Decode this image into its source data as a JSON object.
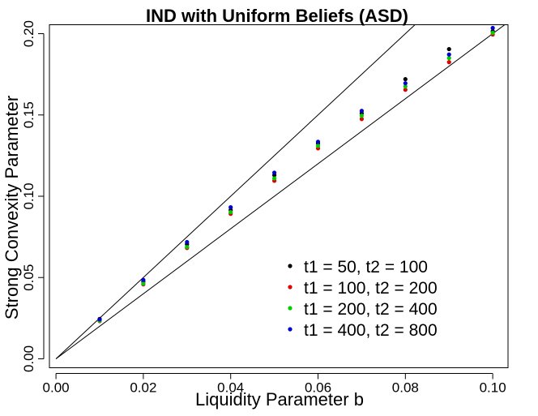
{
  "chart_data": {
    "type": "scatter",
    "title": "IND with  Uniform Beliefs (ASD)",
    "xlabel": "Liquidity Parameter b",
    "ylabel": "Strong Convexity Parameter",
    "xlim": [
      -0.0015,
      0.1035
    ],
    "ylim": [
      -0.0055,
      0.2055
    ],
    "x_ticks": [
      "0.00",
      "0.02",
      "0.04",
      "0.06",
      "0.08",
      "0.10"
    ],
    "y_ticks": [
      "0.00",
      "0.05",
      "0.10",
      "0.15",
      "0.20"
    ],
    "grid": false,
    "legend_position": "bottom-right",
    "reference_lines": [
      {
        "slope": 2.5
      },
      {
        "slope": 2.0
      }
    ],
    "x": [
      0.01,
      0.02,
      0.03,
      0.04,
      0.05,
      0.06,
      0.07,
      0.08,
      0.09,
      0.1
    ],
    "series": [
      {
        "name": "t1 = 50, t2 = 100",
        "color": "#000000",
        "values": [
          0.0245,
          0.0475,
          0.0705,
          0.0915,
          0.113,
          0.1325,
          0.151,
          0.172,
          0.1905,
          0.2015
        ]
      },
      {
        "name": "t1 = 100, t2 = 200",
        "color": "#df0000",
        "values": [
          0.0232,
          0.0458,
          0.0682,
          0.0892,
          0.1095,
          0.1295,
          0.1475,
          0.1655,
          0.1825,
          0.1995
        ]
      },
      {
        "name": "t1 = 200, t2 = 400",
        "color": "#00cd00",
        "values": [
          0.0235,
          0.0463,
          0.0688,
          0.0902,
          0.111,
          0.131,
          0.1495,
          0.1675,
          0.185,
          0.2005
        ]
      },
      {
        "name": "t1 = 400, t2 = 800",
        "color": "#0000cd",
        "values": [
          0.0242,
          0.0485,
          0.0718,
          0.0932,
          0.1145,
          0.1335,
          0.1525,
          0.1695,
          0.1872,
          0.2035
        ]
      }
    ]
  }
}
